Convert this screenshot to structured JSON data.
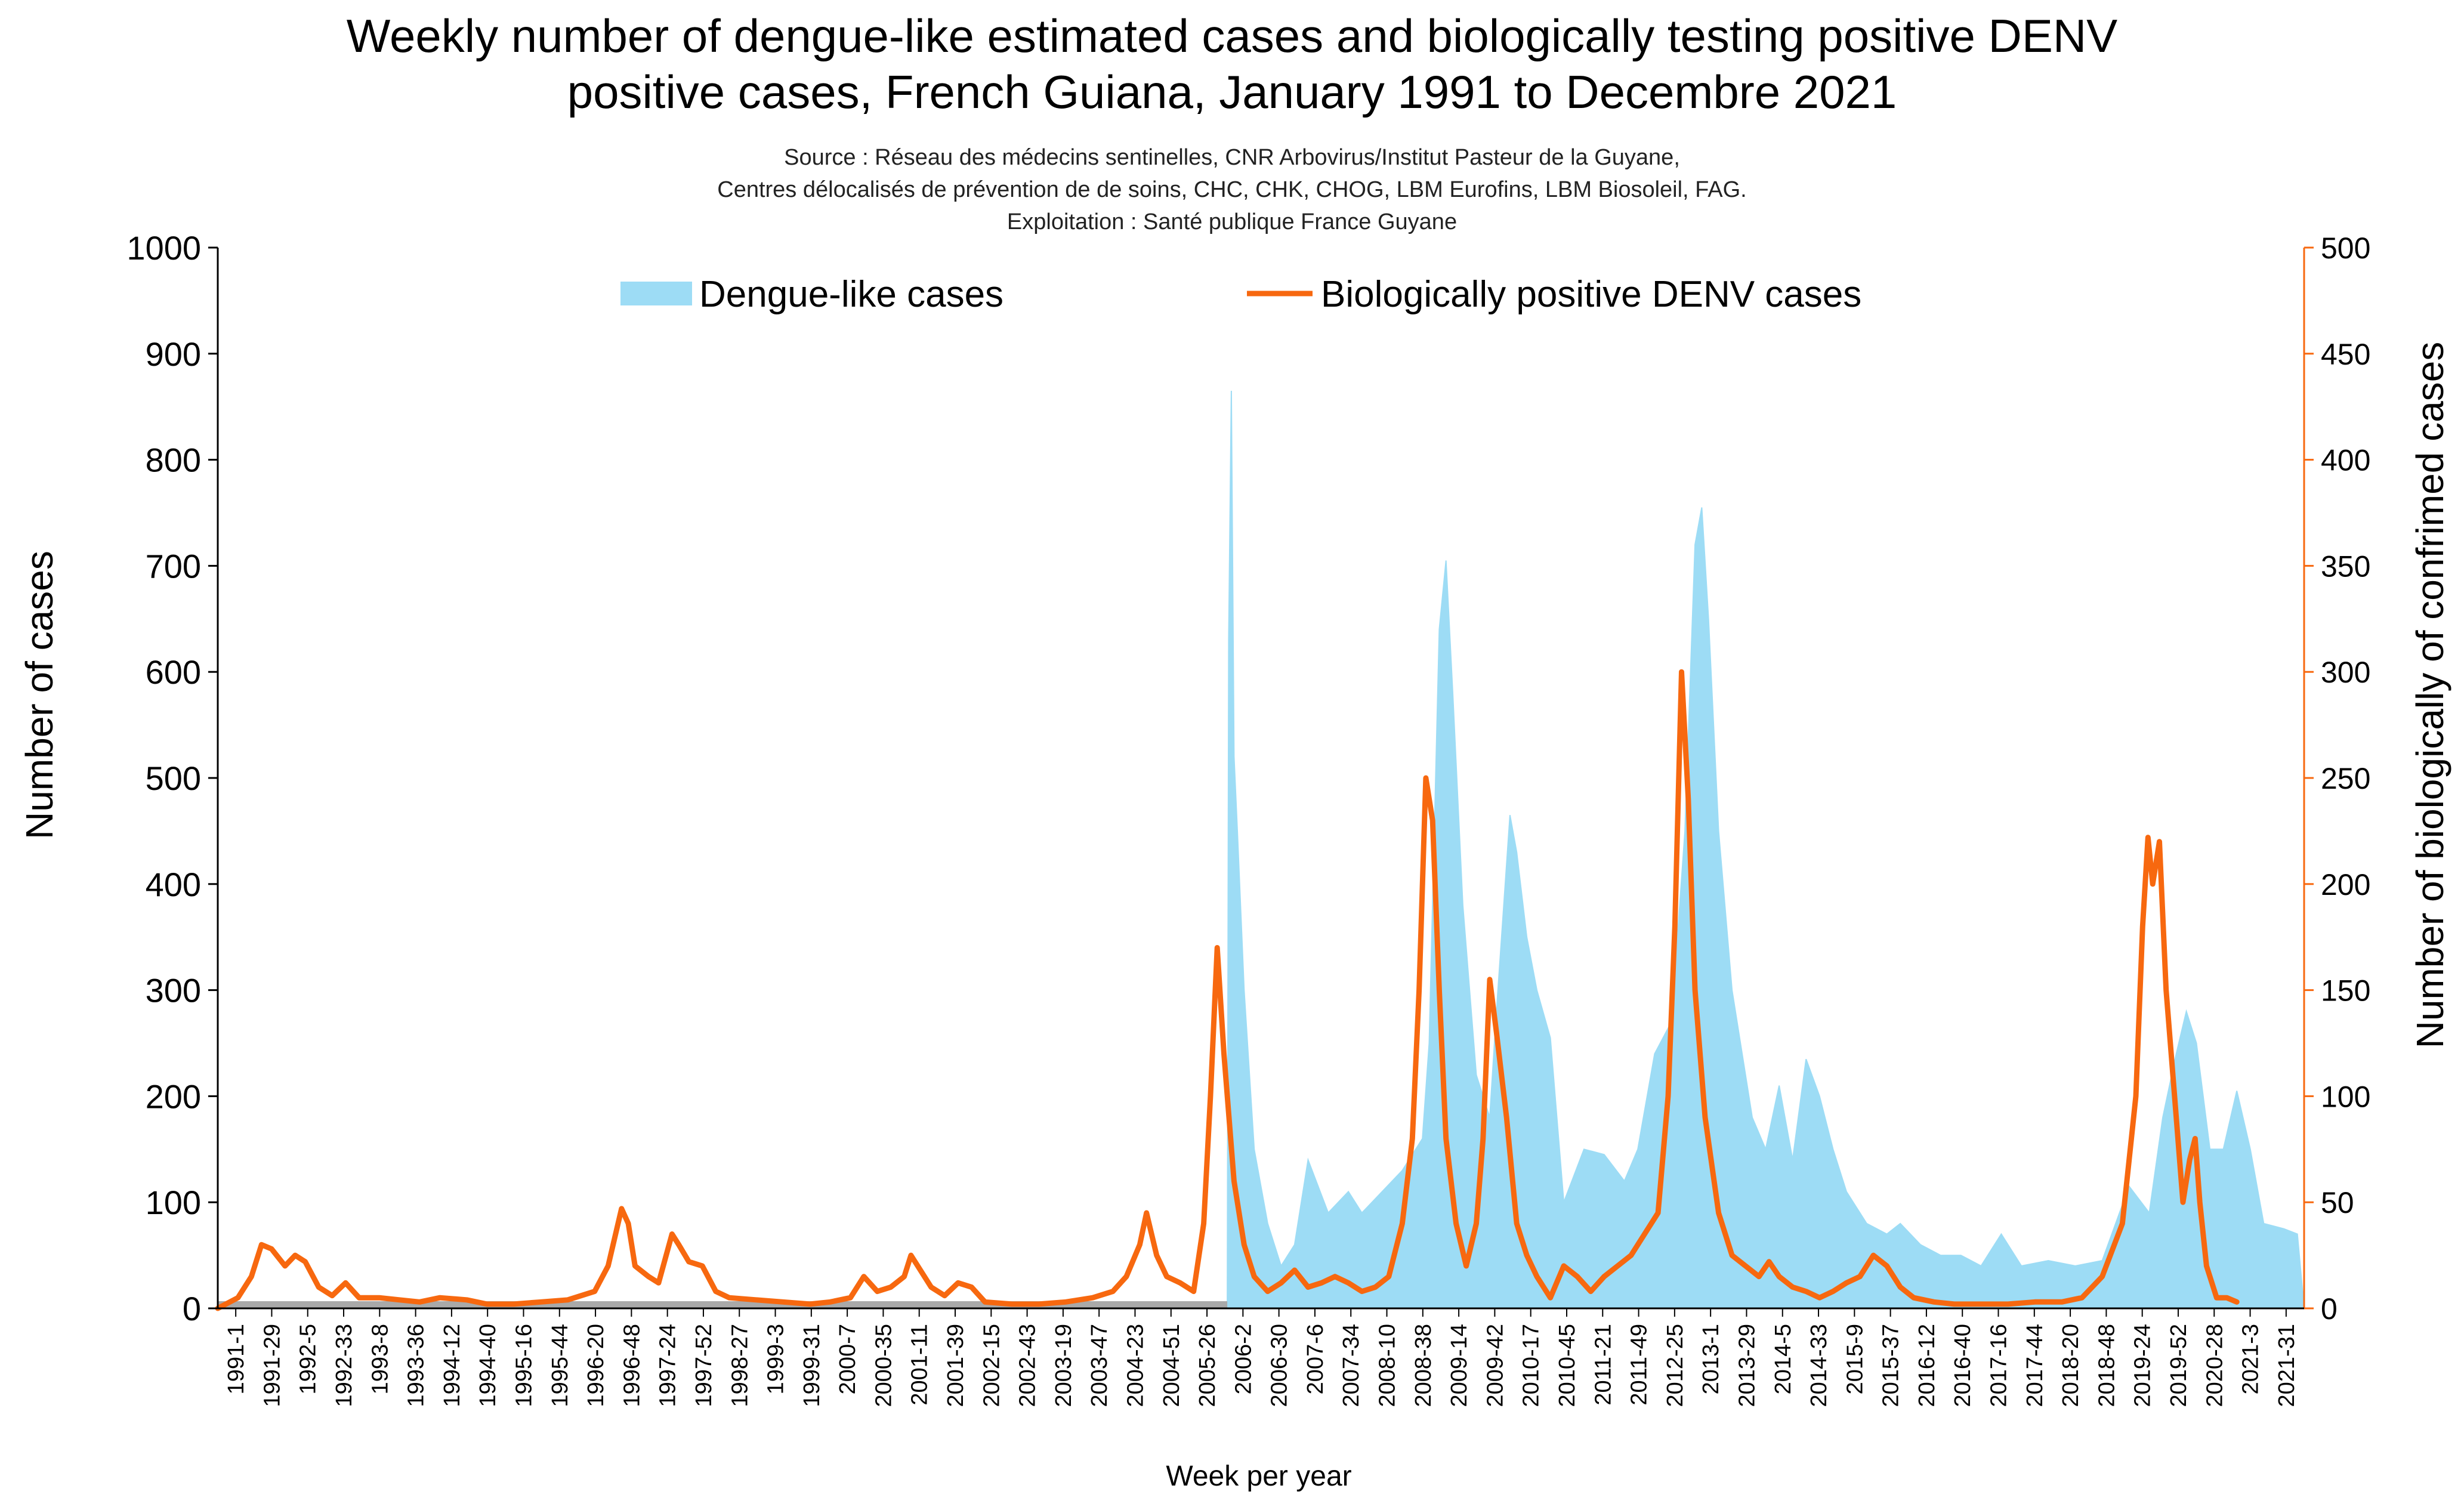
{
  "title_line1": "Weekly number of dengue-like estimated cases and biologically testing positive DENV",
  "title_line2": "positive cases, French Guiana, January 1991 to Decembre 2021",
  "source_line1": "Source : Réseau des médecins sentinelles, CNR Arbovirus/Institut Pasteur de la Guyane,",
  "source_line2": "Centres délocalisés de prévention de de soins, CHC, CHK, CHOG, LBM Eurofins, LBM Biosoleil, FAG.",
  "source_line3": "Exploitation : Santé publique France Guyane",
  "colors": {
    "dengue_like": "#9ddcf5",
    "denv_positive": "#f7680f",
    "baseline": "#a9a9a9",
    "right_axis": "#f7680f"
  },
  "chart_data": {
    "type": "bar+line",
    "xlabel": "Week per year",
    "ylabel_left": "Number of cases",
    "ylabel_right": "Number of biologically of confrimed cases",
    "ylim_left": [
      0,
      1000
    ],
    "ylim_right": [
      0,
      500
    ],
    "yticks_left": [
      0,
      100,
      200,
      300,
      400,
      500,
      600,
      700,
      800,
      900,
      1000
    ],
    "yticks_right": [
      0,
      50,
      100,
      150,
      200,
      250,
      300,
      350,
      400,
      450,
      500
    ],
    "x_start": 1991,
    "x_end": 2022,
    "x_tick_labels": [
      "1991-1",
      "1991-29",
      "1992-5",
      "1992-33",
      "1993-8",
      "1993-36",
      "1994-12",
      "1994-40",
      "1995-16",
      "1995-44",
      "1996-20",
      "1996-48",
      "1997-24",
      "1997-52",
      "1998-27",
      "1999-3",
      "1999-31",
      "2000-7",
      "2000-35",
      "2001-11",
      "2001-39",
      "2002-15",
      "2002-43",
      "2003-19",
      "2003-47",
      "2004-23",
      "2004-51",
      "2005-26",
      "2006-2",
      "2006-30",
      "2007-6",
      "2007-34",
      "2008-10",
      "2008-38",
      "2009-14",
      "2009-42",
      "2010-17",
      "2010-45",
      "2011-21",
      "2011-49",
      "2012-25",
      "2013-1",
      "2013-29",
      "2014-5",
      "2014-33",
      "2015-9",
      "2015-37",
      "2016-12",
      "2016-40",
      "2017-16",
      "2017-44",
      "2018-20",
      "2018-48",
      "2019-24",
      "2019-52",
      "2020-28",
      "2021-3",
      "2021-31"
    ],
    "legend": [
      {
        "name": "Dengue-like cases",
        "kind": "area",
        "axis": "left"
      },
      {
        "name": "Biologically positive DENV cases",
        "kind": "line",
        "axis": "right"
      }
    ],
    "series": [
      {
        "name": "Dengue-like cases",
        "axis": "left",
        "points": [
          [
            2006.0,
            0
          ],
          [
            2006.02,
            630
          ],
          [
            2006.06,
            865
          ],
          [
            2006.1,
            520
          ],
          [
            2006.15,
            450
          ],
          [
            2006.25,
            300
          ],
          [
            2006.4,
            150
          ],
          [
            2006.6,
            80
          ],
          [
            2006.8,
            40
          ],
          [
            2007.0,
            60
          ],
          [
            2007.2,
            140
          ],
          [
            2007.5,
            90
          ],
          [
            2007.8,
            110
          ],
          [
            2008.0,
            90
          ],
          [
            2008.3,
            110
          ],
          [
            2008.6,
            130
          ],
          [
            2008.9,
            160
          ],
          [
            2009.0,
            250
          ],
          [
            2009.15,
            640
          ],
          [
            2009.25,
            705
          ],
          [
            2009.35,
            580
          ],
          [
            2009.5,
            380
          ],
          [
            2009.7,
            220
          ],
          [
            2009.9,
            180
          ],
          [
            2010.0,
            280
          ],
          [
            2010.2,
            465
          ],
          [
            2010.3,
            430
          ],
          [
            2010.45,
            350
          ],
          [
            2010.6,
            300
          ],
          [
            2010.8,
            255
          ],
          [
            2011.0,
            100
          ],
          [
            2011.3,
            150
          ],
          [
            2011.6,
            145
          ],
          [
            2011.9,
            120
          ],
          [
            2012.1,
            150
          ],
          [
            2012.35,
            240
          ],
          [
            2012.6,
            270
          ],
          [
            2012.8,
            450
          ],
          [
            2012.95,
            720
          ],
          [
            2013.05,
            755
          ],
          [
            2013.15,
            650
          ],
          [
            2013.3,
            450
          ],
          [
            2013.5,
            300
          ],
          [
            2013.8,
            180
          ],
          [
            2014.0,
            150
          ],
          [
            2014.2,
            210
          ],
          [
            2014.4,
            140
          ],
          [
            2014.6,
            235
          ],
          [
            2014.8,
            200
          ],
          [
            2015.0,
            150
          ],
          [
            2015.2,
            110
          ],
          [
            2015.5,
            80
          ],
          [
            2015.8,
            70
          ],
          [
            2016.0,
            80
          ],
          [
            2016.3,
            60
          ],
          [
            2016.6,
            50
          ],
          [
            2016.9,
            50
          ],
          [
            2017.2,
            40
          ],
          [
            2017.5,
            70
          ],
          [
            2017.8,
            40
          ],
          [
            2018.2,
            45
          ],
          [
            2018.6,
            40
          ],
          [
            2019.0,
            45
          ],
          [
            2019.4,
            115
          ],
          [
            2019.7,
            90
          ],
          [
            2019.9,
            180
          ],
          [
            2020.1,
            240
          ],
          [
            2020.25,
            280
          ],
          [
            2020.4,
            250
          ],
          [
            2020.6,
            150
          ],
          [
            2020.8,
            150
          ],
          [
            2021.0,
            205
          ],
          [
            2021.2,
            150
          ],
          [
            2021.4,
            80
          ],
          [
            2021.7,
            75
          ],
          [
            2021.9,
            70
          ],
          [
            2022.0,
            0
          ]
        ]
      },
      {
        "name": "Biologically positive DENV cases",
        "axis": "right",
        "points": [
          [
            1991.0,
            0
          ],
          [
            1991.3,
            5
          ],
          [
            1991.5,
            15
          ],
          [
            1991.65,
            30
          ],
          [
            1991.8,
            28
          ],
          [
            1992.0,
            20
          ],
          [
            1992.15,
            25
          ],
          [
            1992.3,
            22
          ],
          [
            1992.5,
            10
          ],
          [
            1992.7,
            6
          ],
          [
            1992.9,
            12
          ],
          [
            1993.1,
            5
          ],
          [
            1993.4,
            5
          ],
          [
            1993.7,
            4
          ],
          [
            1994.0,
            3
          ],
          [
            1994.3,
            5
          ],
          [
            1994.7,
            4
          ],
          [
            1995.0,
            2
          ],
          [
            1995.4,
            2
          ],
          [
            1995.8,
            3
          ],
          [
            1996.2,
            4
          ],
          [
            1996.6,
            8
          ],
          [
            1996.8,
            20
          ],
          [
            1997.0,
            47
          ],
          [
            1997.1,
            40
          ],
          [
            1997.2,
            20
          ],
          [
            1997.4,
            15
          ],
          [
            1997.55,
            12
          ],
          [
            1997.75,
            35
          ],
          [
            1997.85,
            30
          ],
          [
            1998.0,
            22
          ],
          [
            1998.2,
            20
          ],
          [
            1998.4,
            8
          ],
          [
            1998.6,
            5
          ],
          [
            1999.0,
            4
          ],
          [
            1999.4,
            3
          ],
          [
            1999.8,
            2
          ],
          [
            2000.1,
            3
          ],
          [
            2000.4,
            5
          ],
          [
            2000.6,
            15
          ],
          [
            2000.8,
            8
          ],
          [
            2001.0,
            10
          ],
          [
            2001.2,
            15
          ],
          [
            2001.3,
            25
          ],
          [
            2001.4,
            20
          ],
          [
            2001.6,
            10
          ],
          [
            2001.8,
            6
          ],
          [
            2002.0,
            12
          ],
          [
            2002.2,
            10
          ],
          [
            2002.4,
            3
          ],
          [
            2002.8,
            2
          ],
          [
            2003.2,
            2
          ],
          [
            2003.6,
            3
          ],
          [
            2004.0,
            5
          ],
          [
            2004.3,
            8
          ],
          [
            2004.5,
            15
          ],
          [
            2004.7,
            30
          ],
          [
            2004.8,
            45
          ],
          [
            2004.95,
            25
          ],
          [
            2005.1,
            15
          ],
          [
            2005.3,
            12
          ],
          [
            2005.5,
            8
          ],
          [
            2005.65,
            40
          ],
          [
            2005.75,
            100
          ],
          [
            2005.85,
            170
          ],
          [
            2005.95,
            120
          ],
          [
            2006.1,
            60
          ],
          [
            2006.25,
            30
          ],
          [
            2006.4,
            15
          ],
          [
            2006.6,
            8
          ],
          [
            2006.8,
            12
          ],
          [
            2007.0,
            18
          ],
          [
            2007.2,
            10
          ],
          [
            2007.4,
            12
          ],
          [
            2007.6,
            15
          ],
          [
            2007.8,
            12
          ],
          [
            2008.0,
            8
          ],
          [
            2008.2,
            10
          ],
          [
            2008.4,
            15
          ],
          [
            2008.6,
            40
          ],
          [
            2008.75,
            80
          ],
          [
            2008.85,
            150
          ],
          [
            2008.95,
            250
          ],
          [
            2009.05,
            230
          ],
          [
            2009.15,
            150
          ],
          [
            2009.25,
            80
          ],
          [
            2009.4,
            40
          ],
          [
            2009.55,
            20
          ],
          [
            2009.7,
            40
          ],
          [
            2009.8,
            80
          ],
          [
            2009.9,
            155
          ],
          [
            2010.0,
            130
          ],
          [
            2010.15,
            90
          ],
          [
            2010.3,
            40
          ],
          [
            2010.45,
            25
          ],
          [
            2010.6,
            15
          ],
          [
            2010.8,
            5
          ],
          [
            2011.0,
            20
          ],
          [
            2011.2,
            15
          ],
          [
            2011.4,
            8
          ],
          [
            2011.6,
            15
          ],
          [
            2011.8,
            20
          ],
          [
            2012.0,
            25
          ],
          [
            2012.2,
            35
          ],
          [
            2012.4,
            45
          ],
          [
            2012.55,
            100
          ],
          [
            2012.65,
            180
          ],
          [
            2012.75,
            300
          ],
          [
            2012.85,
            240
          ],
          [
            2012.95,
            150
          ],
          [
            2013.1,
            90
          ],
          [
            2013.3,
            45
          ],
          [
            2013.5,
            25
          ],
          [
            2013.7,
            20
          ],
          [
            2013.9,
            15
          ],
          [
            2014.05,
            22
          ],
          [
            2014.2,
            15
          ],
          [
            2014.4,
            10
          ],
          [
            2014.6,
            8
          ],
          [
            2014.8,
            5
          ],
          [
            2015.0,
            8
          ],
          [
            2015.2,
            12
          ],
          [
            2015.4,
            15
          ],
          [
            2015.6,
            25
          ],
          [
            2015.8,
            20
          ],
          [
            2016.0,
            10
          ],
          [
            2016.2,
            5
          ],
          [
            2016.5,
            3
          ],
          [
            2016.8,
            2
          ],
          [
            2017.2,
            2
          ],
          [
            2017.6,
            2
          ],
          [
            2018.0,
            3
          ],
          [
            2018.4,
            3
          ],
          [
            2018.7,
            5
          ],
          [
            2019.0,
            15
          ],
          [
            2019.3,
            40
          ],
          [
            2019.5,
            100
          ],
          [
            2019.6,
            180
          ],
          [
            2019.68,
            222
          ],
          [
            2019.75,
            200
          ],
          [
            2019.85,
            220
          ],
          [
            2019.95,
            150
          ],
          [
            2020.1,
            90
          ],
          [
            2020.2,
            50
          ],
          [
            2020.3,
            70
          ],
          [
            2020.38,
            80
          ],
          [
            2020.45,
            50
          ],
          [
            2020.55,
            20
          ],
          [
            2020.7,
            5
          ],
          [
            2020.85,
            5
          ],
          [
            2021.0,
            3
          ]
        ]
      }
    ]
  }
}
